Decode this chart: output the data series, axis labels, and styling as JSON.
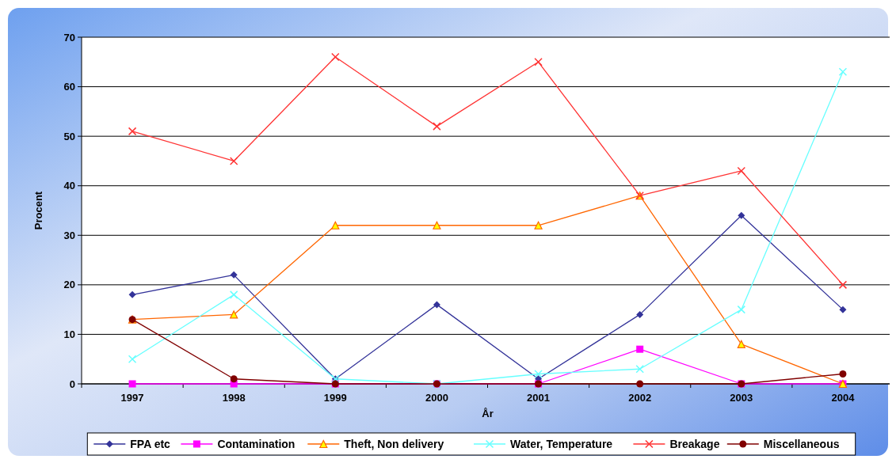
{
  "chart_data": {
    "type": "line",
    "xlabel": "År",
    "ylabel": "Procent",
    "categories": [
      "1997",
      "1998",
      "1999",
      "2000",
      "2001",
      "2002",
      "2003",
      "2004"
    ],
    "ylim": [
      0,
      70
    ],
    "yticks": [
      0,
      10,
      20,
      30,
      40,
      50,
      60,
      70
    ],
    "grid": "y",
    "legend": "bottom",
    "series": [
      {
        "name": "FPA etc",
        "color": "#333399",
        "marker": "diamond",
        "values": [
          18,
          22,
          1,
          16,
          1,
          14,
          34,
          15
        ]
      },
      {
        "name": "Contamination",
        "color": "#ff00ff",
        "marker": "square",
        "values": [
          0,
          0,
          0,
          0,
          0,
          7,
          0,
          0
        ]
      },
      {
        "name": "Theft, Non delivery",
        "color": "#ff6600",
        "marker": "triangle",
        "values": [
          13,
          14,
          32,
          32,
          32,
          38,
          8,
          0
        ]
      },
      {
        "name": "Water, Temperature",
        "color": "#66ffff",
        "marker": "cross",
        "values": [
          5,
          18,
          1,
          0,
          2,
          3,
          15,
          63
        ]
      },
      {
        "name": "Breakage",
        "color": "#ff3333",
        "marker": "cross",
        "values": [
          51,
          45,
          66,
          52,
          65,
          38,
          43,
          20
        ]
      },
      {
        "name": "Miscellaneous",
        "color": "#800000",
        "marker": "circle",
        "values": [
          13,
          1,
          0,
          0,
          0,
          0,
          0,
          2
        ]
      }
    ]
  }
}
